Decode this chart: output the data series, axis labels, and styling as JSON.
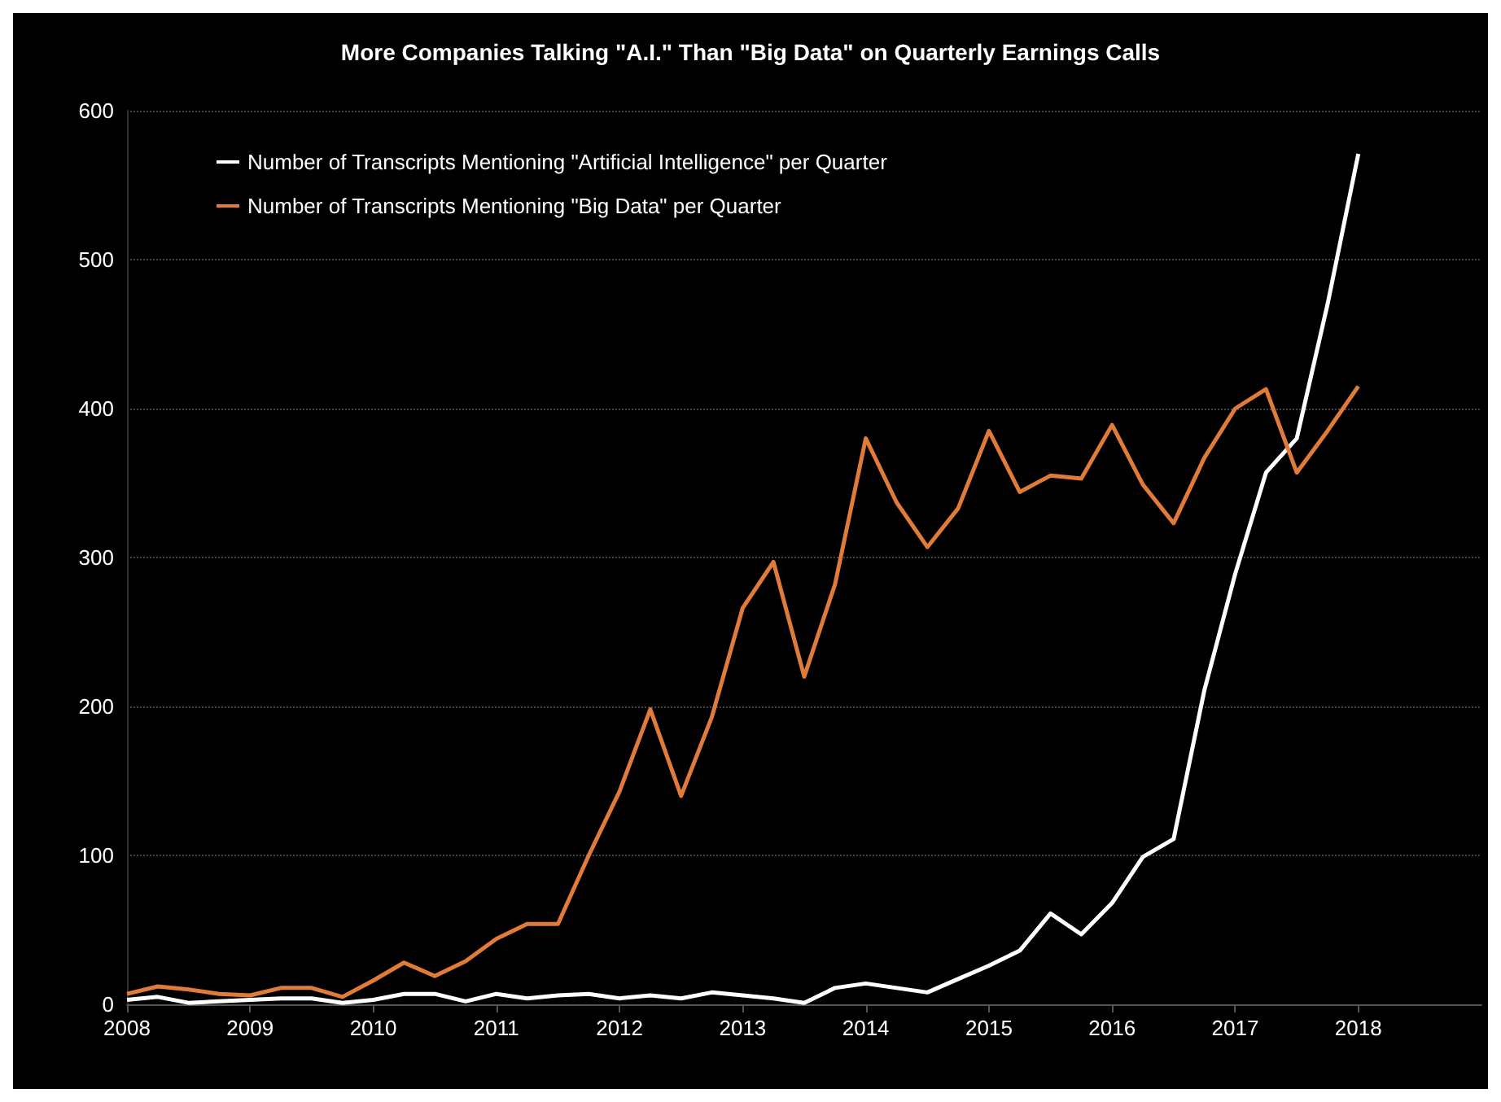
{
  "chart_data": {
    "type": "line",
    "title": "More Companies Talking \"A.I.\" Than \"Big Data\" on Quarterly Earnings Calls",
    "x": [
      2008,
      2008.25,
      2008.5,
      2008.75,
      2009,
      2009.25,
      2009.5,
      2009.75,
      2010,
      2010.25,
      2010.5,
      2010.75,
      2011,
      2011.25,
      2011.5,
      2011.75,
      2012,
      2012.25,
      2012.5,
      2012.75,
      2013,
      2013.25,
      2013.5,
      2013.75,
      2014,
      2014.25,
      2014.5,
      2014.75,
      2015,
      2015.25,
      2015.5,
      2015.75,
      2016,
      2016.25,
      2016.5,
      2016.75,
      2017,
      2017.25,
      2017.5,
      2017.75,
      2018
    ],
    "series": [
      {
        "name": "Number of Transcripts Mentioning \"Artificial Intelligence\" per Quarter",
        "color": "#ffffff",
        "values": [
          3,
          5,
          1,
          2,
          3,
          4,
          4,
          1,
          3,
          7,
          7,
          2,
          7,
          4,
          6,
          7,
          4,
          6,
          4,
          8,
          6,
          4,
          1,
          11,
          14,
          11,
          8,
          17,
          26,
          36,
          61,
          47,
          68,
          99,
          111,
          211,
          289,
          357,
          380,
          470,
          571
        ]
      },
      {
        "name": "Number of Transcripts Mentioning \"Big Data\" per Quarter",
        "color": "#e07b39",
        "values": [
          7,
          12,
          10,
          7,
          6,
          11,
          11,
          5,
          16,
          28,
          19,
          29,
          44,
          54,
          54,
          100,
          143,
          198,
          140,
          193,
          266,
          297,
          220,
          282,
          380,
          337,
          307,
          333,
          385,
          344,
          355,
          353,
          389,
          349,
          323,
          367,
          400,
          413,
          357,
          385,
          415
        ]
      }
    ],
    "xlim": [
      2008,
      2019
    ],
    "xticks": [
      2008,
      2009,
      2010,
      2011,
      2012,
      2013,
      2014,
      2015,
      2016,
      2017,
      2018
    ],
    "ylim": [
      0,
      600
    ],
    "yticks": [
      0,
      100,
      200,
      300,
      400,
      500,
      600
    ],
    "grid": "y",
    "legend": "top left",
    "marker": "none",
    "line_style": "solid"
  }
}
